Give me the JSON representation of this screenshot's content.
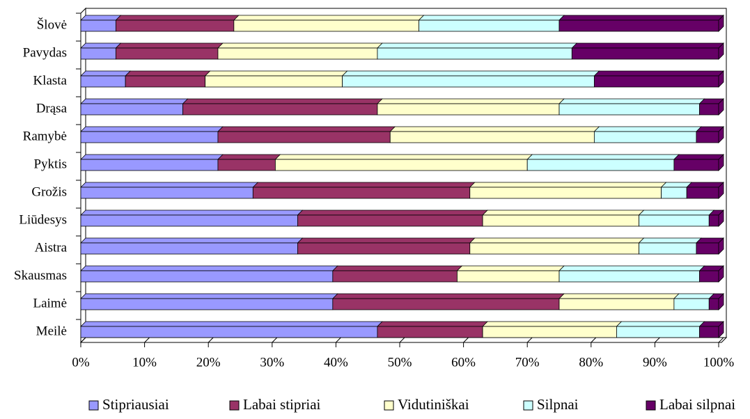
{
  "chart_data": {
    "type": "stacked-barh",
    "categories": [
      "Šlovė",
      "Pavydas",
      "Klasta",
      "Drąsa",
      "Ramybė",
      "Pyktis",
      "Grožis",
      "Liūdesys",
      "Aistra",
      "Skausmas",
      "Laimė",
      "Meilė"
    ],
    "series": [
      {
        "name": "Stipriausiai",
        "color": "#9999ff",
        "values": [
          5.5,
          5.5,
          7,
          16,
          21.5,
          21.5,
          27,
          34,
          34,
          39.5,
          39.5,
          46.5
        ]
      },
      {
        "name": "Labai stipriai",
        "color": "#993366",
        "values": [
          18.5,
          16,
          12.5,
          30.5,
          27,
          9,
          34,
          29,
          27,
          19.5,
          35.5,
          16.5
        ]
      },
      {
        "name": "Vidutiniškai",
        "color": "#ffffcc",
        "values": [
          29,
          25,
          21.5,
          28.5,
          32,
          39.5,
          30,
          24.5,
          26.5,
          16,
          18,
          21
        ]
      },
      {
        "name": "Silpnai",
        "color": "#ccffff",
        "values": [
          22,
          30.5,
          39.5,
          22,
          16,
          23,
          4,
          11,
          9,
          22,
          5.5,
          13
        ]
      },
      {
        "name": "Labai silpnai",
        "color": "#660066",
        "values": [
          25,
          23,
          19.5,
          3,
          3.5,
          7,
          5,
          1.5,
          3.5,
          3,
          1.5,
          3
        ]
      }
    ],
    "xlim": [
      0,
      100
    ],
    "xticks": [
      {
        "value": 0,
        "label": "0%"
      },
      {
        "value": 10,
        "label": "10%"
      },
      {
        "value": 20,
        "label": "20%"
      },
      {
        "value": 30,
        "label": "30%"
      },
      {
        "value": 40,
        "label": "40%"
      },
      {
        "value": 50,
        "label": "50%"
      },
      {
        "value": 60,
        "label": "60%"
      },
      {
        "value": 70,
        "label": "70%"
      },
      {
        "value": 80,
        "label": "80%"
      },
      {
        "value": 90,
        "label": "90%"
      },
      {
        "value": 100,
        "label": "100%"
      }
    ],
    "legend": "bottom"
  }
}
